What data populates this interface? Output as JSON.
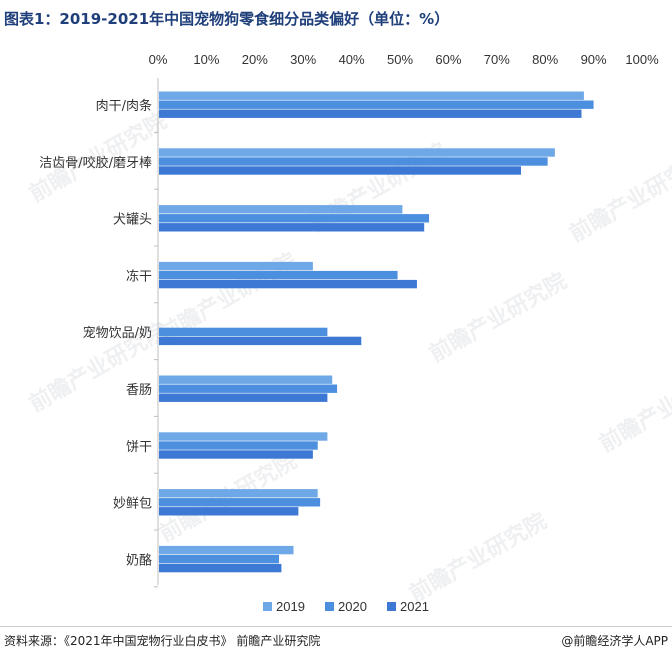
{
  "header": {
    "title": "图表1：2019-2021年中国宠物狗零食细分品类偏好（单位：%）"
  },
  "footer": {
    "source": "资料来源：《2021年中国宠物行业白皮书》 前瞻产业研究院",
    "brand": "@前瞻经济学人APP"
  },
  "watermark": {
    "text": "前瞻产业研究院"
  },
  "colors": {
    "2019": "#6fa8e6",
    "2020": "#4d8fdf",
    "2021": "#3c78d4",
    "axis": "#bfbfbf"
  },
  "chart_data": {
    "type": "bar",
    "orientation": "horizontal",
    "xlim": [
      0,
      100
    ],
    "xticks": [
      "0%",
      "10%",
      "20%",
      "30%",
      "40%",
      "50%",
      "60%",
      "70%",
      "80%",
      "90%",
      "100%"
    ],
    "legend_position": "bottom",
    "grid": false,
    "categories": [
      "肉干/肉条",
      "洁齿骨/咬胶/磨牙棒",
      "犬罐头",
      "冻干",
      "宠物饮品/奶",
      "香肠",
      "饼干",
      "妙鲜包",
      "奶酪"
    ],
    "series": [
      {
        "name": "2019",
        "values": [
          88,
          82,
          50.5,
          32,
          0,
          36,
          35,
          33,
          28
        ]
      },
      {
        "name": "2020",
        "values": [
          90,
          80.5,
          56,
          49.5,
          35,
          37,
          33,
          33.5,
          25
        ]
      },
      {
        "name": "2021",
        "values": [
          87.5,
          75,
          55,
          53.5,
          42,
          35,
          32,
          29,
          25.5
        ]
      }
    ]
  }
}
